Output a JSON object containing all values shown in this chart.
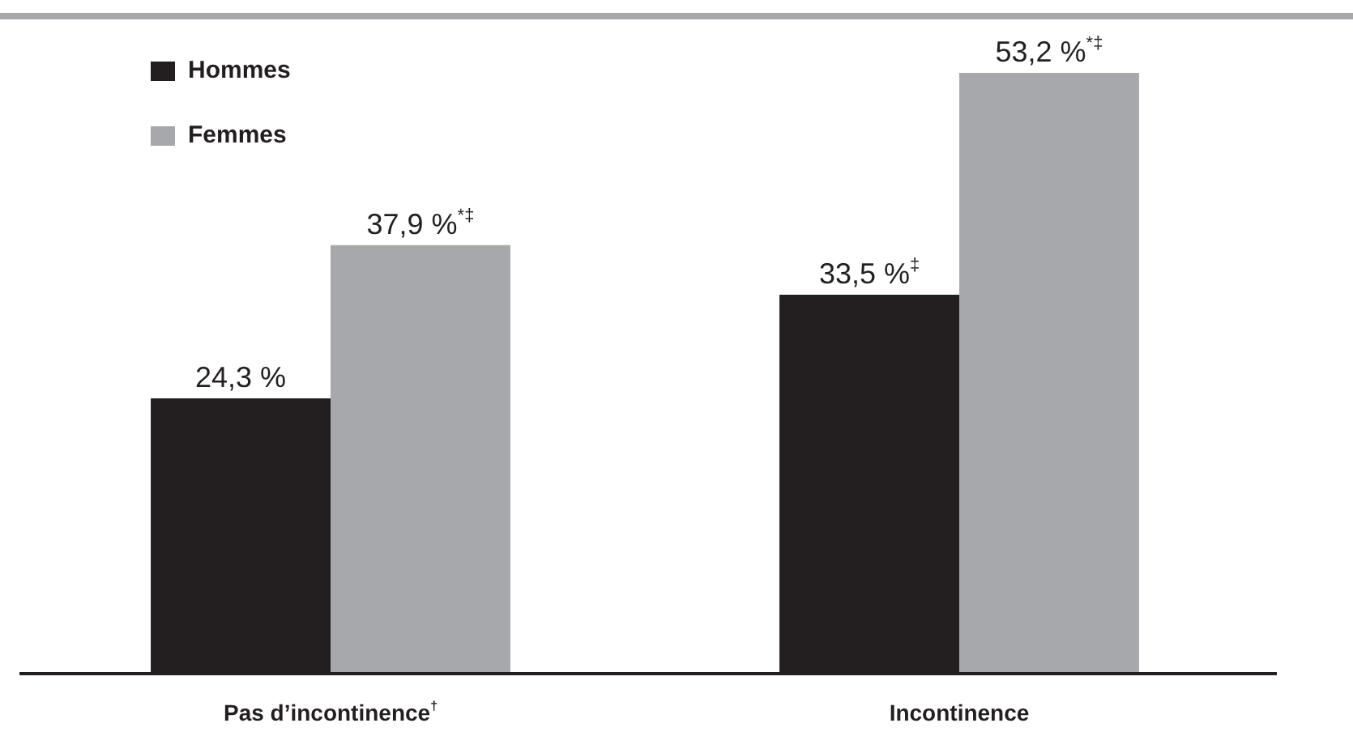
{
  "chart_data": {
    "type": "bar",
    "categories": [
      "Pas d’incontinence$^{†}$",
      "Incontinence"
    ],
    "series": [
      {
        "name": "Hommes",
        "color": "#231f20",
        "values": [
          24.3,
          33.5
        ],
        "value_labels": [
          "24,3 %",
          "33,5 %$^{‡}$"
        ]
      },
      {
        "name": "Femmes",
        "color": "#a7a8ab",
        "values": [
          37.9,
          53.2
        ],
        "value_labels": [
          "37,9 %$^{*‡}$",
          "53,2 %$^{*‡}$"
        ]
      }
    ],
    "legend": "top left"
  }
}
